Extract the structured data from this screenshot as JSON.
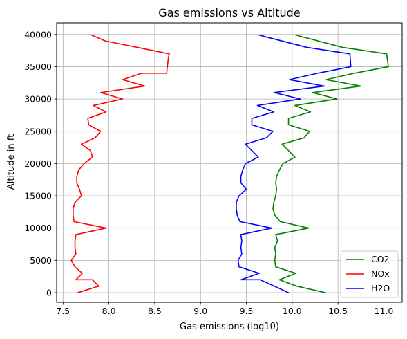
{
  "chart_data": {
    "type": "line",
    "title": "Gas emissions vs Altitude",
    "xlabel": "Gas emissions (log10)",
    "ylabel": "Altitude in ft",
    "xlim": [
      7.43,
      11.2
    ],
    "ylim": [
      -1500,
      41800
    ],
    "xticks": [
      7.5,
      8.0,
      8.5,
      9.0,
      9.5,
      10.0,
      10.5,
      11.0
    ],
    "xtick_labels": [
      "7.5",
      "8.0",
      "8.5",
      "9.0",
      "9.5",
      "10.0",
      "10.5",
      "11.0"
    ],
    "yticks": [
      0,
      5000,
      10000,
      15000,
      20000,
      25000,
      30000,
      35000,
      40000
    ],
    "ytick_labels": [
      "0",
      "5000",
      "10000",
      "15000",
      "20000",
      "25000",
      "30000",
      "35000",
      "40000"
    ],
    "grid": true,
    "legend_position": "lower-right",
    "series": [
      {
        "name": "CO2",
        "color": "#008000",
        "points": [
          [
            10.36,
            0
          ],
          [
            10.05,
            1000
          ],
          [
            9.86,
            2000
          ],
          [
            10.04,
            3000
          ],
          [
            9.82,
            4000
          ],
          [
            9.81,
            5000
          ],
          [
            9.82,
            6000
          ],
          [
            9.81,
            7000
          ],
          [
            9.84,
            8000
          ],
          [
            9.82,
            9000
          ],
          [
            10.18,
            10000
          ],
          [
            9.87,
            11000
          ],
          [
            9.81,
            12000
          ],
          [
            9.79,
            13000
          ],
          [
            9.8,
            14000
          ],
          [
            9.82,
            15000
          ],
          [
            9.83,
            16000
          ],
          [
            9.82,
            17000
          ],
          [
            9.83,
            18000
          ],
          [
            9.86,
            19000
          ],
          [
            9.9,
            20000
          ],
          [
            10.03,
            21000
          ],
          [
            9.96,
            22000
          ],
          [
            9.89,
            23000
          ],
          [
            10.13,
            24000
          ],
          [
            10.19,
            25000
          ],
          [
            9.96,
            26000
          ],
          [
            9.96,
            27000
          ],
          [
            10.2,
            28000
          ],
          [
            10.03,
            29000
          ],
          [
            10.49,
            30000
          ],
          [
            10.22,
            31000
          ],
          [
            10.75,
            32000
          ],
          [
            10.37,
            33000
          ],
          [
            10.68,
            34000
          ],
          [
            11.05,
            35000
          ],
          [
            11.03,
            37000
          ],
          [
            10.55,
            38000
          ],
          [
            10.04,
            39900
          ]
        ]
      },
      {
        "name": "NOx",
        "color": "#ff0000",
        "points": [
          [
            7.66,
            0
          ],
          [
            7.89,
            1000
          ],
          [
            7.82,
            2000
          ],
          [
            7.64,
            2000
          ],
          [
            7.71,
            3000
          ],
          [
            7.63,
            4000
          ],
          [
            7.59,
            5000
          ],
          [
            7.64,
            6000
          ],
          [
            7.63,
            7000
          ],
          [
            7.63,
            8000
          ],
          [
            7.64,
            9000
          ],
          [
            7.97,
            10000
          ],
          [
            7.62,
            11000
          ],
          [
            7.61,
            12000
          ],
          [
            7.61,
            13000
          ],
          [
            7.63,
            14000
          ],
          [
            7.7,
            15000
          ],
          [
            7.68,
            16000
          ],
          [
            7.65,
            17000
          ],
          [
            7.65,
            18000
          ],
          [
            7.67,
            19000
          ],
          [
            7.73,
            20000
          ],
          [
            7.82,
            21000
          ],
          [
            7.8,
            22000
          ],
          [
            7.7,
            23000
          ],
          [
            7.85,
            24000
          ],
          [
            7.91,
            25000
          ],
          [
            7.78,
            26000
          ],
          [
            7.77,
            27000
          ],
          [
            7.97,
            28000
          ],
          [
            7.83,
            29000
          ],
          [
            8.15,
            30000
          ],
          [
            7.91,
            31000
          ],
          [
            8.39,
            32000
          ],
          [
            8.15,
            33000
          ],
          [
            8.36,
            34000
          ],
          [
            8.63,
            34000
          ],
          [
            8.65,
            36500
          ],
          [
            8.66,
            37000
          ],
          [
            7.96,
            39000
          ],
          [
            7.81,
            39900
          ]
        ]
      },
      {
        "name": "H2O",
        "color": "#0000ff",
        "points": [
          [
            9.96,
            0
          ],
          [
            9.65,
            2000
          ],
          [
            9.44,
            2000
          ],
          [
            9.64,
            3000
          ],
          [
            9.42,
            4000
          ],
          [
            9.41,
            5000
          ],
          [
            9.45,
            6000
          ],
          [
            9.44,
            7000
          ],
          [
            9.45,
            8000
          ],
          [
            9.44,
            9000
          ],
          [
            9.78,
            10000
          ],
          [
            9.43,
            11000
          ],
          [
            9.4,
            12000
          ],
          [
            9.39,
            13000
          ],
          [
            9.39,
            14000
          ],
          [
            9.42,
            15000
          ],
          [
            9.5,
            16000
          ],
          [
            9.44,
            17000
          ],
          [
            9.44,
            18000
          ],
          [
            9.46,
            19000
          ],
          [
            9.49,
            20000
          ],
          [
            9.63,
            21000
          ],
          [
            9.56,
            22000
          ],
          [
            9.49,
            23000
          ],
          [
            9.72,
            24000
          ],
          [
            9.79,
            25000
          ],
          [
            9.56,
            26000
          ],
          [
            9.56,
            27000
          ],
          [
            9.8,
            28000
          ],
          [
            9.62,
            29000
          ],
          [
            10.09,
            30000
          ],
          [
            9.8,
            31000
          ],
          [
            10.35,
            32000
          ],
          [
            9.97,
            33000
          ],
          [
            10.28,
            34000
          ],
          [
            10.64,
            35000
          ],
          [
            10.63,
            37000
          ],
          [
            10.16,
            38000
          ],
          [
            9.64,
            39900
          ]
        ]
      }
    ]
  }
}
